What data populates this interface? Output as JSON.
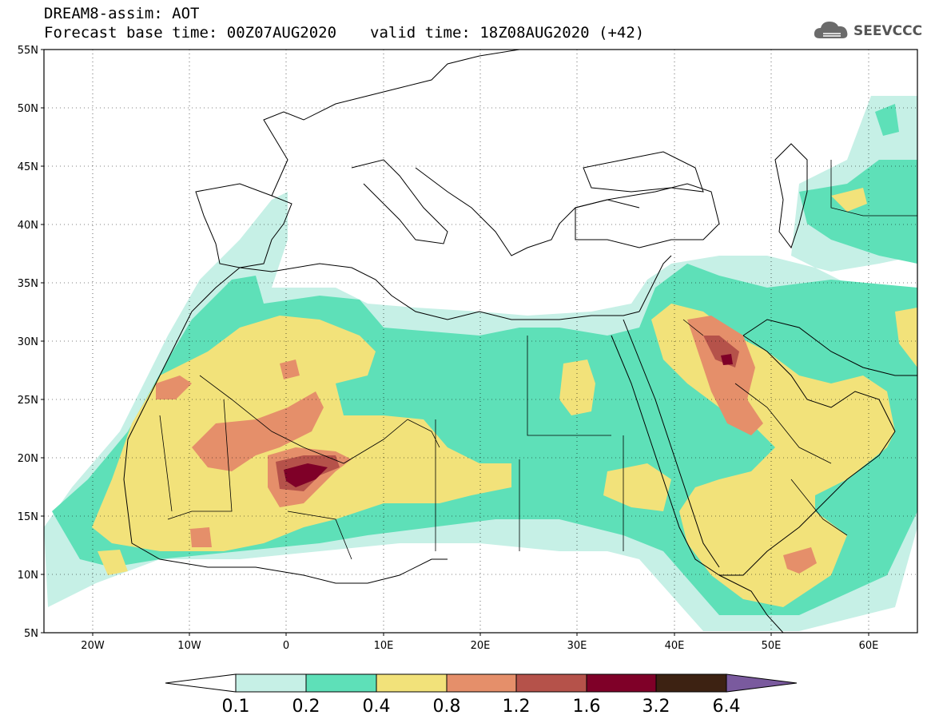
{
  "header": {
    "title": "DREAM8-assim: AOT",
    "base_time": "Forecast base time: 00Z07AUG2020",
    "valid_time": "valid time: 18Z08AUG2020 (+42)",
    "logo_text": "SEEVCCC",
    "logo_icon": "cloud-icon"
  },
  "map": {
    "lon_range": [
      -25,
      65
    ],
    "lat_range": [
      5,
      55
    ],
    "lat_ticks": [
      "55N",
      "50N",
      "45N",
      "40N",
      "35N",
      "30N",
      "25N",
      "20N",
      "15N",
      "10N",
      "5N"
    ],
    "lon_ticks": [
      "20W",
      "10W",
      "0",
      "10E",
      "20E",
      "30E",
      "40E",
      "50E",
      "60E"
    ],
    "grid": true
  },
  "colorbar": {
    "labels": [
      "0.1",
      "0.2",
      "0.4",
      "0.8",
      "1.2",
      "1.6",
      "3.2",
      "6.4"
    ],
    "colors": {
      "c01": "#c6f0e6",
      "c02": "#5ee0b8",
      "c04": "#f2e27a",
      "c08": "#e58f6a",
      "c12": "#b5524a",
      "c16": "#7f0028",
      "c32": "#3d2212",
      "c64": "#7a5a9e"
    }
  }
}
